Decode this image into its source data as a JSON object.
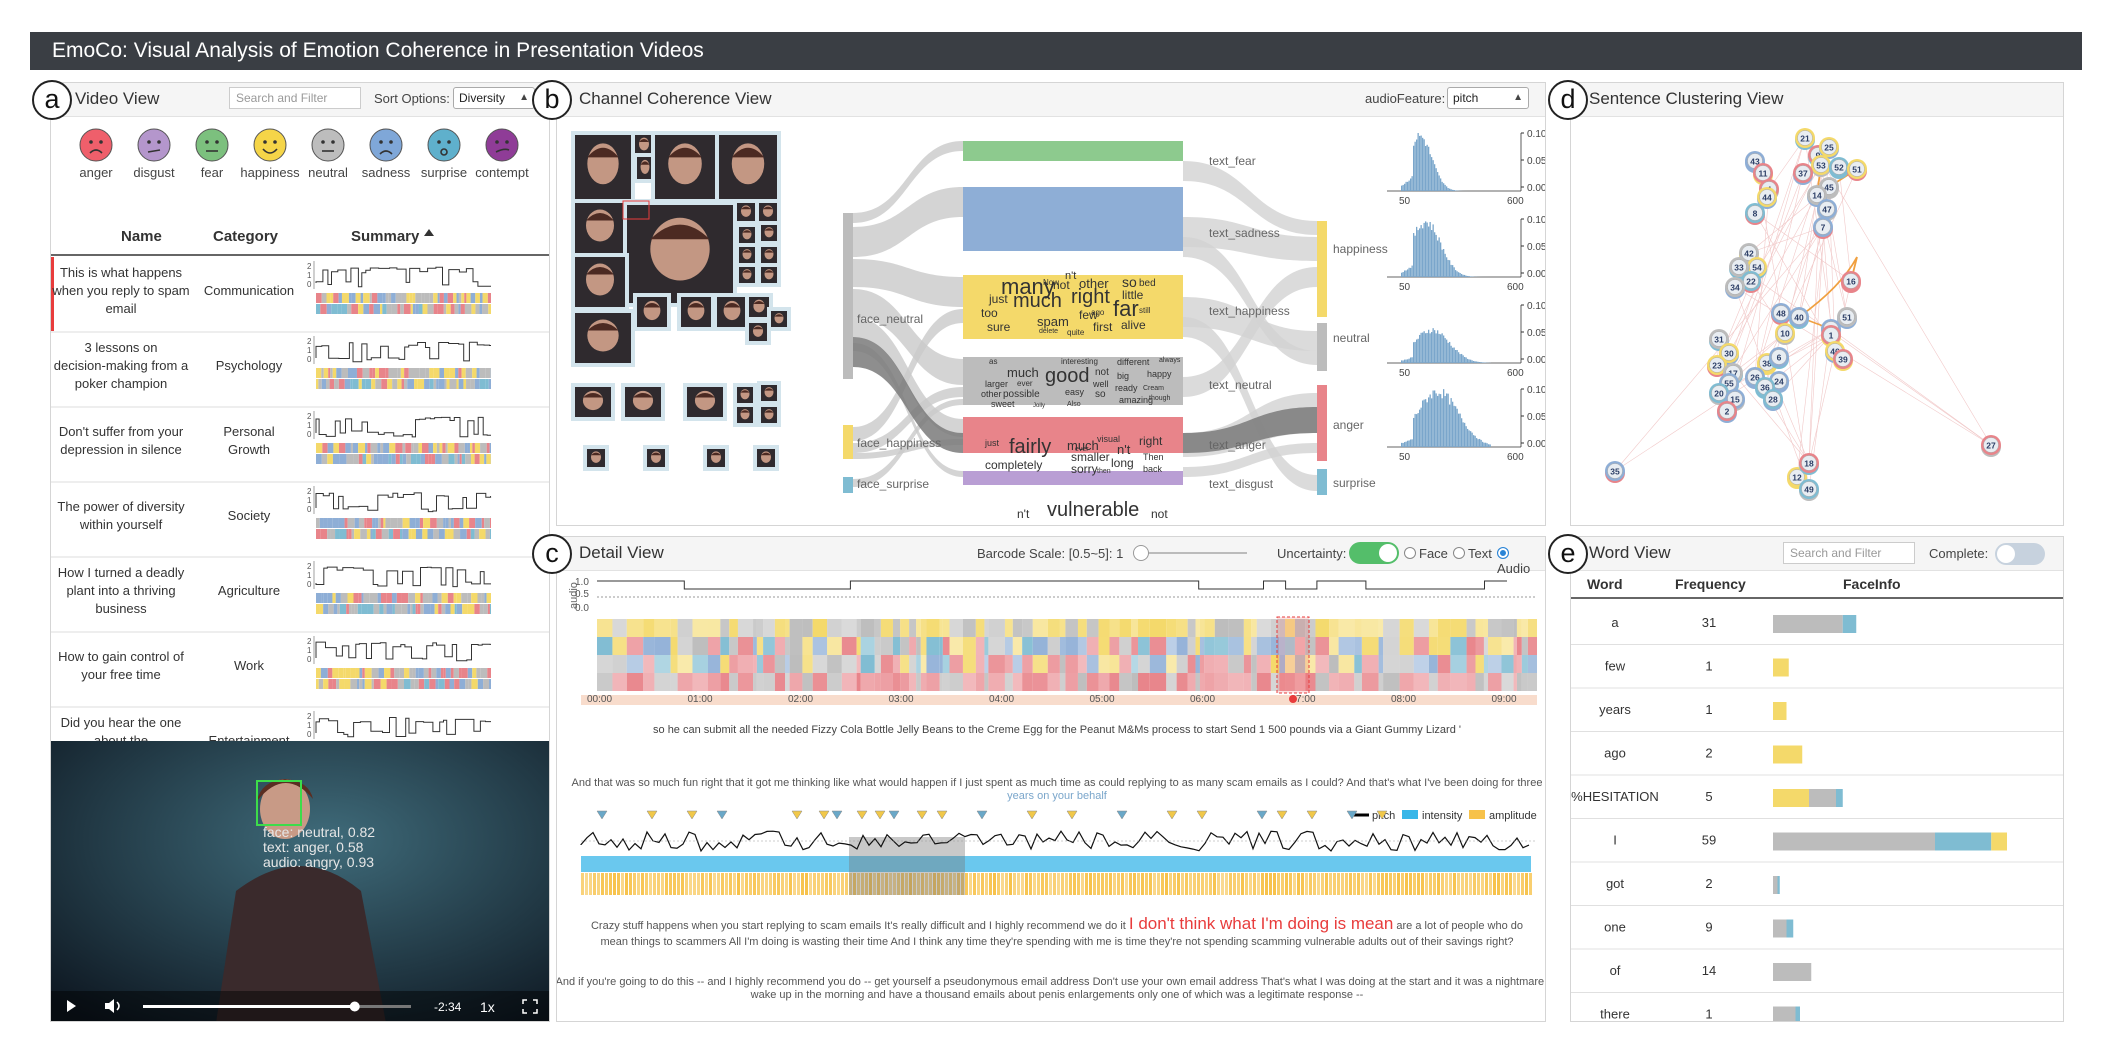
{
  "app": {
    "title": "EmoCo: Visual Analysis of Emotion Coherence in Presentation Videos"
  },
  "badges": {
    "a": "a",
    "b": "b",
    "c": "c",
    "d": "d",
    "e": "e"
  },
  "colors": {
    "anger": "#e8848a",
    "disgust": "#b99ed4",
    "fear": "#8dca8e",
    "happiness": "#f4d96a",
    "neutral": "#bcbcbc",
    "sadness": "#8eaed6",
    "surprise": "#7fbcd2",
    "contempt": "#9b4ba4",
    "accent_red": "#e83c3c",
    "toggle_green": "#54be6a"
  },
  "video_view": {
    "title": "Video View",
    "search_placeholder": "Search and Filter",
    "sort_label": "Sort Options:",
    "sort_value": "Diversity",
    "emotions": [
      "anger",
      "disgust",
      "fear",
      "happiness",
      "neutral",
      "sadness",
      "surprise",
      "contempt"
    ],
    "columns": {
      "name": "Name",
      "category": "Category",
      "summary": "Summary"
    },
    "axis_ticks": [
      "2",
      "1",
      "0"
    ],
    "videos": [
      {
        "name": "This is what happens when you reply to spam email",
        "category": "Communication"
      },
      {
        "name": "3 lessons on decision-making from a poker champion",
        "category": "Psychology"
      },
      {
        "name": "Don't suffer from your depression in silence",
        "category": "Personal Growth"
      },
      {
        "name": "The power of diversity within yourself",
        "category": "Society"
      },
      {
        "name": "How I turned a deadly plant into a thriving business",
        "category": "Agriculture"
      },
      {
        "name": "How to gain control of your free time",
        "category": "Work"
      },
      {
        "name": "Did you hear the one about the Iranian-American?",
        "category": "Entertainment"
      }
    ],
    "player": {
      "overlay": [
        "face: neutral, 0.82",
        "text: anger, 0.58",
        "audio: angry, 0.93"
      ],
      "time": "-2:34",
      "speed": "1x",
      "progress": 0.79
    }
  },
  "channel_view": {
    "title": "Channel Coherence View",
    "audio_feature_label": "audioFeature:",
    "audio_feature_value": "pitch",
    "face_labels": [
      "face_neutral",
      "face_happiness",
      "face_surprise"
    ],
    "text_labels": [
      "text_fear",
      "text_sadness",
      "text_happiness",
      "text_neutral",
      "text_anger",
      "text_disgust"
    ],
    "audio_labels": [
      "happiness",
      "neutral",
      "anger",
      "surprise"
    ],
    "hist_y_ticks": [
      "0.10",
      "0.05",
      "0.00"
    ],
    "hist_x_ticks": [
      "50",
      "600"
    ],
    "word_clouds": {
      "sadness": [
        "many",
        "not",
        "n't",
        "other",
        "so",
        "bed",
        "just",
        "much",
        "right",
        "little",
        "far",
        "too",
        "sure",
        "spam",
        "few",
        "first",
        "alive",
        "Now",
        "delete",
        "quite",
        "ago",
        "still"
      ],
      "happiness": [
        "as",
        "larger",
        "much",
        "good",
        "interesting",
        "different",
        "not",
        "always",
        "ever",
        "well",
        "big",
        "happy",
        "other",
        "possible",
        "easy",
        "ready",
        "sweet",
        "so",
        "amazing",
        "Cream",
        "Jolly",
        "Also",
        "though"
      ],
      "neutral": [
        "just",
        "fairly",
        "much",
        "visual",
        "n't",
        "right",
        "completely",
        "smaller",
        "sorry",
        "ever",
        "long",
        "Then",
        "then",
        "back"
      ],
      "anger": [
        "n't",
        "vulnerable",
        "not"
      ],
      "disgust": [
        "not"
      ]
    }
  },
  "cluster_view": {
    "title": "Sentence Clustering View",
    "nodes": [
      "21",
      "9",
      "25",
      "43",
      "11",
      "53",
      "52",
      "51",
      "4",
      "37",
      "45",
      "14",
      "44",
      "47",
      "8",
      "7",
      "42",
      "54",
      "33",
      "22",
      "34",
      "16",
      "48",
      "40",
      "10",
      "29",
      "51",
      "1",
      "31",
      "30",
      "23",
      "17",
      "38",
      "6",
      "24",
      "55",
      "46",
      "39",
      "20",
      "26",
      "36",
      "15",
      "28",
      "2",
      "27",
      "35",
      "12",
      "18",
      "49"
    ]
  },
  "detail_view": {
    "title": "Detail View",
    "barcode_scale_label": "Barcode Scale: [0.5~5]: 1",
    "uncertainty_label": "Uncertainty:",
    "radio_options": [
      "Face",
      "Text",
      "Audio"
    ],
    "audio_axis_label": "audio",
    "audio_ticks": [
      "1.0",
      "0.5",
      "0.0"
    ],
    "time_ticks": [
      "00:00",
      "01:00",
      "02:00",
      "03:00",
      "04:00",
      "05:00",
      "06:00",
      "07:00",
      "08:00",
      "09:00"
    ],
    "legend": {
      "pitch": "pitch",
      "intensity": "intensity",
      "amplitude": "amplitude"
    },
    "sentence1": "so he can submit all the needed Fizzy Cola Bottle Jelly Beans to the Creme Egg for the Peanut M&Ms process to start Send 1 500 pounds via a Giant Gummy Lizard '",
    "sentence2a": "And that was so much fun right that it got me thinking like what would happen if I just spent as much time as could replying to as many scam emails as I could? And that's what I've been doing for three",
    "sentence2b": "years on your behalf",
    "sentence3_pre": "Crazy stuff happens when you start replying to scam emails It's really difficult and I highly recommend we do it ",
    "sentence3_highlight": "I don't think what I'm doing is mean",
    "sentence3_post": " are a lot of people who do",
    "sentence3b": "mean things to scammers All I'm doing is wasting their time And I think any time they're spending with me is time they're not spending scamming vulnerable adults out of their savings right?",
    "sentence4a": "And if you're going to do this -- and I highly recommend you do -- get yourself a pseudonymous email address Don't use your own email address That's what I was doing at the start and it was a nightmare I'd",
    "sentence4b": "wake up in the morning and have a thousand emails about penis enlargements only one of which was a legitimate response --"
  },
  "word_view": {
    "title": "Word View",
    "search_placeholder": "Search and Filter",
    "complete_label": "Complete:",
    "columns": {
      "word": "Word",
      "frequency": "Frequency",
      "faceinfo": "FaceInfo"
    },
    "rows": [
      {
        "word": "a",
        "freq": "31",
        "segs": [
          {
            "c": "neutral",
            "v": 31
          },
          {
            "c": "surprise",
            "v": 6
          }
        ]
      },
      {
        "word": "few",
        "freq": "1",
        "segs": [
          {
            "c": "happiness",
            "v": 7
          }
        ]
      },
      {
        "word": "years",
        "freq": "1",
        "segs": [
          {
            "c": "happiness",
            "v": 6
          }
        ]
      },
      {
        "word": "ago",
        "freq": "2",
        "segs": [
          {
            "c": "happiness",
            "v": 13
          }
        ]
      },
      {
        "word": "%HESITATION",
        "freq": "5",
        "segs": [
          {
            "c": "happiness",
            "v": 16
          },
          {
            "c": "neutral",
            "v": 12
          },
          {
            "c": "surprise",
            "v": 3
          }
        ]
      },
      {
        "word": "I",
        "freq": "59",
        "segs": [
          {
            "c": "neutral",
            "v": 72
          },
          {
            "c": "surprise",
            "v": 25
          },
          {
            "c": "happiness",
            "v": 7
          }
        ]
      },
      {
        "word": "got",
        "freq": "2",
        "segs": [
          {
            "c": "neutral",
            "v": 2
          },
          {
            "c": "surprise",
            "v": 1
          }
        ]
      },
      {
        "word": "one",
        "freq": "9",
        "segs": [
          {
            "c": "neutral",
            "v": 6
          },
          {
            "c": "surprise",
            "v": 3
          }
        ]
      },
      {
        "word": "of",
        "freq": "14",
        "segs": [
          {
            "c": "neutral",
            "v": 17
          }
        ]
      },
      {
        "word": "there",
        "freq": "1",
        "segs": [
          {
            "c": "neutral",
            "v": 10
          },
          {
            "c": "surprise",
            "v": 2
          }
        ]
      }
    ]
  }
}
